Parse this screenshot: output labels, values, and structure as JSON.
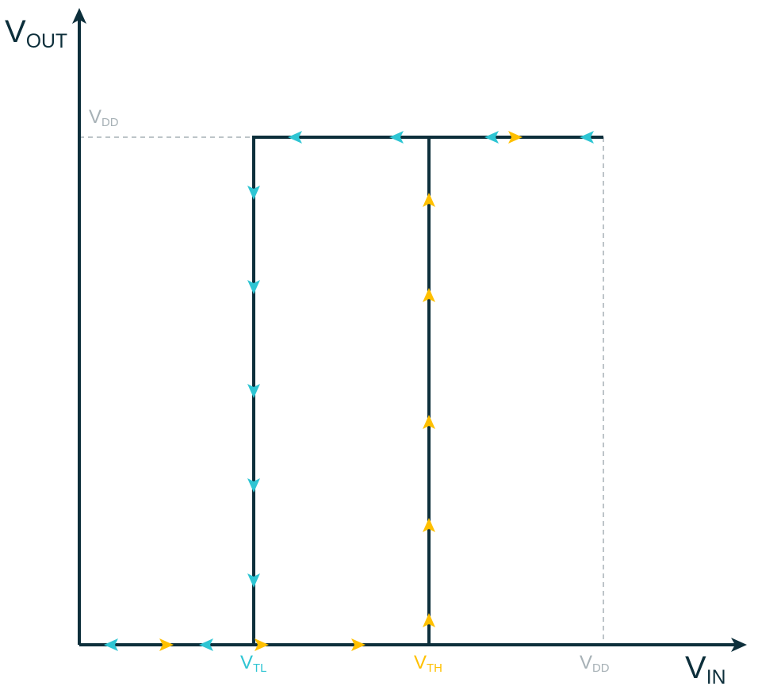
{
  "colors": {
    "axis": "#0d2f3b",
    "curve": "#0d2f3b",
    "guide": "#a7b1b6",
    "decreasing": "#2ec5d3",
    "increasing": "#ffc000"
  },
  "axes": {
    "y": {
      "main": "V",
      "sub": "OUT"
    },
    "x": {
      "main": "V",
      "sub": "IN"
    }
  },
  "thresholds": {
    "low": {
      "main": "V",
      "sub": "TL"
    },
    "high": {
      "main": "V",
      "sub": "TH"
    }
  },
  "supply": {
    "y_tick": {
      "main": "V",
      "sub": "DD"
    },
    "x_tick": {
      "main": "V",
      "sub": "DD"
    }
  },
  "direction_arrows": {
    "decreasing_path": "cyan-arrow",
    "increasing_path": "yellow-arrow"
  }
}
